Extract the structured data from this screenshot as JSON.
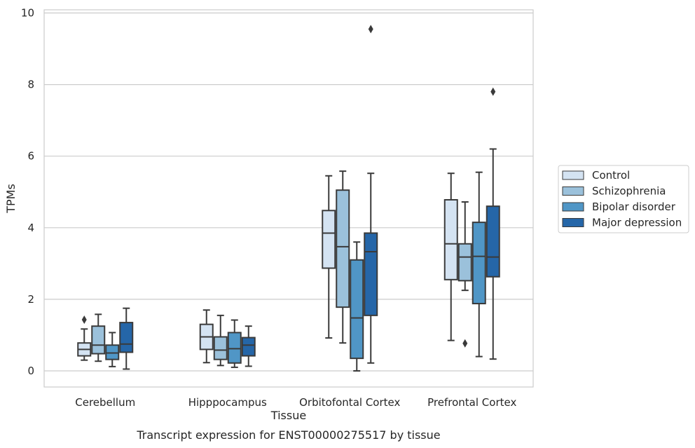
{
  "chart_data": {
    "type": "box",
    "title": "",
    "caption": "Transcript expression for ENST00000275517 by tissue",
    "xlabel": "Tissue",
    "ylabel": "TPMs",
    "ylim": [
      -0.45,
      10.05
    ],
    "yticks": [
      0,
      2,
      4,
      6,
      8,
      10
    ],
    "grid": true,
    "legend_position": "right",
    "categories": [
      "Cerebellum",
      "Hipppocampus",
      "Orbitofontal Cortex",
      "Prefrontal Cortex"
    ],
    "series": [
      {
        "name": "Control",
        "color": "#d4e3f2",
        "boxes": [
          {
            "whislo": 0.3,
            "q1": 0.42,
            "med": 0.6,
            "q3": 0.78,
            "whishi": 1.17,
            "fliers": [
              1.43
            ]
          },
          {
            "whislo": 0.23,
            "q1": 0.6,
            "med": 0.95,
            "q3": 1.3,
            "whishi": 1.7,
            "fliers": []
          },
          {
            "whislo": 0.92,
            "q1": 2.87,
            "med": 3.85,
            "q3": 4.48,
            "whishi": 5.45,
            "fliers": []
          },
          {
            "whislo": 0.85,
            "q1": 2.55,
            "med": 3.55,
            "q3": 4.78,
            "whishi": 5.52,
            "fliers": []
          }
        ]
      },
      {
        "name": "Schizophrenia",
        "color": "#9bc1db",
        "boxes": [
          {
            "whislo": 0.27,
            "q1": 0.48,
            "med": 0.72,
            "q3": 1.25,
            "whishi": 1.58,
            "fliers": []
          },
          {
            "whislo": 0.15,
            "q1": 0.32,
            "med": 0.58,
            "q3": 0.95,
            "whishi": 1.55,
            "fliers": []
          },
          {
            "whislo": 0.78,
            "q1": 1.78,
            "med": 3.47,
            "q3": 5.05,
            "whishi": 5.58,
            "fliers": []
          },
          {
            "whislo": 2.25,
            "q1": 2.52,
            "med": 3.18,
            "q3": 3.55,
            "whishi": 4.72,
            "fliers": [
              0.77
            ]
          }
        ]
      },
      {
        "name": "Bipolar disorder",
        "color": "#5096c6",
        "boxes": [
          {
            "whislo": 0.12,
            "q1": 0.32,
            "med": 0.5,
            "q3": 0.72,
            "whishi": 1.07,
            "fliers": []
          },
          {
            "whislo": 0.1,
            "q1": 0.22,
            "med": 0.62,
            "q3": 1.07,
            "whishi": 1.42,
            "fliers": []
          },
          {
            "whislo": 0.0,
            "q1": 0.35,
            "med": 1.48,
            "q3": 3.1,
            "whishi": 3.6,
            "fliers": []
          },
          {
            "whislo": 0.4,
            "q1": 1.88,
            "med": 3.2,
            "q3": 4.15,
            "whishi": 5.55,
            "fliers": []
          }
        ]
      },
      {
        "name": "Major depression",
        "color": "#2566a8",
        "boxes": [
          {
            "whislo": 0.05,
            "q1": 0.52,
            "med": 0.75,
            "q3": 1.35,
            "whishi": 1.75,
            "fliers": []
          },
          {
            "whislo": 0.13,
            "q1": 0.42,
            "med": 0.72,
            "q3": 0.93,
            "whishi": 1.25,
            "fliers": []
          },
          {
            "whislo": 0.22,
            "q1": 1.55,
            "med": 3.33,
            "q3": 3.85,
            "whishi": 5.52,
            "fliers": [
              9.55
            ]
          },
          {
            "whislo": 0.33,
            "q1": 2.63,
            "med": 3.18,
            "q3": 4.6,
            "whishi": 6.2,
            "fliers": [
              7.8
            ]
          }
        ]
      }
    ]
  }
}
